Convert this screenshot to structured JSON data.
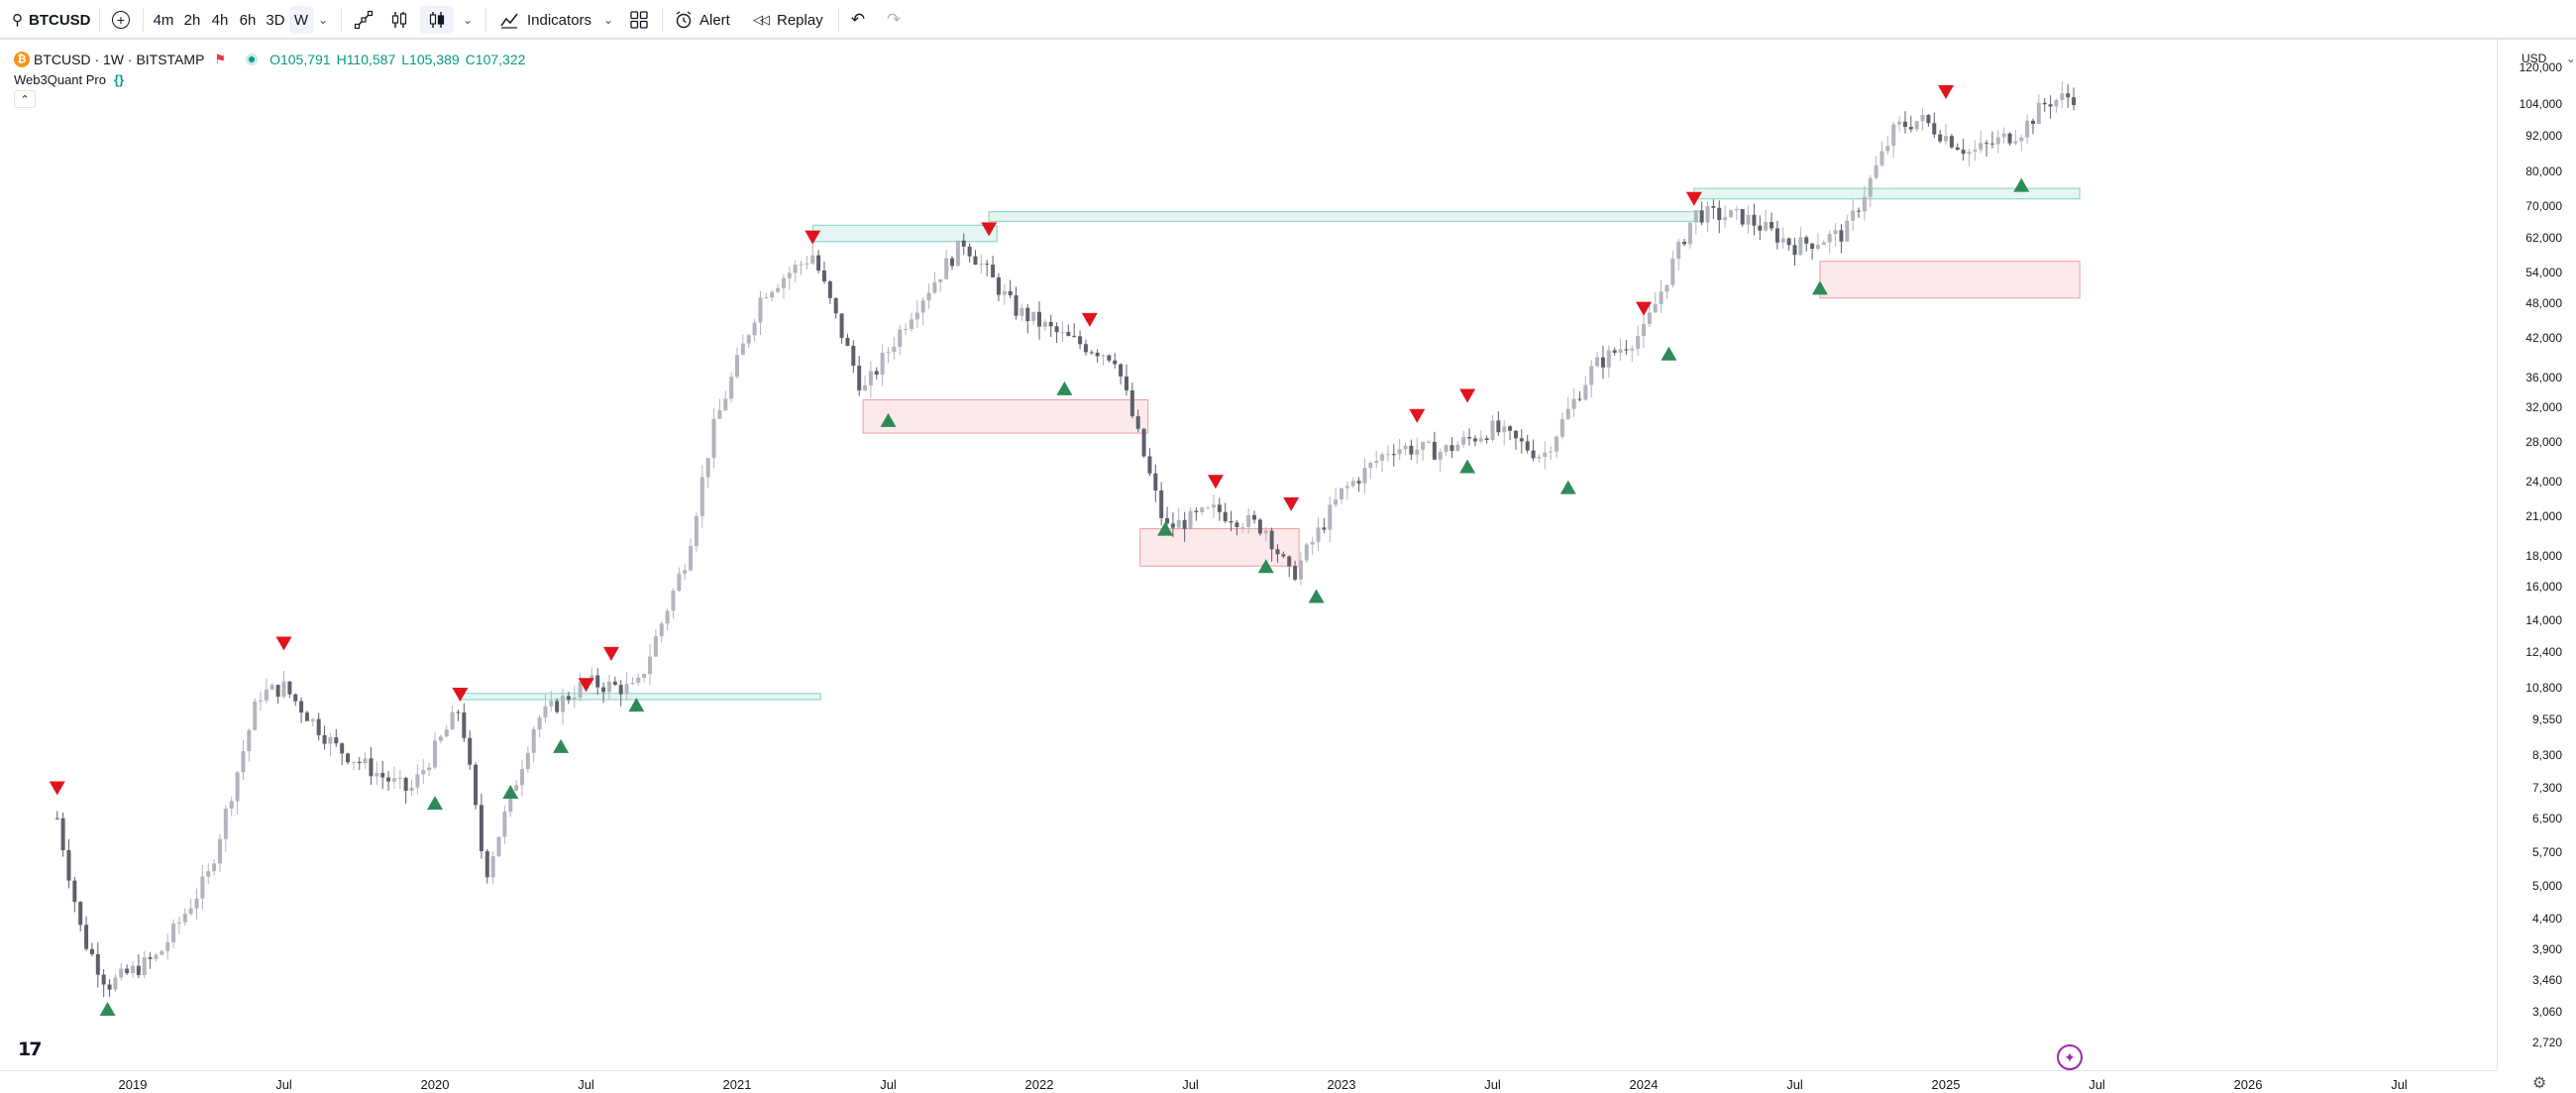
{
  "toolbar": {
    "symbol": "BTCUSD",
    "intervals": [
      "4m",
      "2h",
      "4h",
      "6h",
      "3D",
      "W"
    ],
    "active_interval": "W",
    "indicators_label": "Indicators",
    "alert_label": "Alert",
    "replay_label": "Replay"
  },
  "legend": {
    "title": "BTCUSD · 1W · BITSTAMP",
    "open": "O105,791",
    "high": "H110,587",
    "low": "L105,389",
    "close": "C107,322",
    "indicator_name": "Web3Quant Pro",
    "indicator_icon": "{}"
  },
  "price_axis": {
    "currency": "USD",
    "labels": [
      "120,000",
      "104,000",
      "92,000",
      "80,000",
      "70,000",
      "62,000",
      "54,000",
      "48,000",
      "42,000",
      "36,000",
      "32,000",
      "28,000",
      "24,000",
      "21,000",
      "18,000",
      "16,000",
      "14,000",
      "12,400",
      "10,800",
      "9,550",
      "8,300",
      "7,300",
      "6,500",
      "5,700",
      "5,000",
      "4,400",
      "3,900",
      "3,460",
      "3,060",
      "2,720"
    ]
  },
  "time_axis": {
    "labels": [
      "2019",
      "Jul",
      "2020",
      "Jul",
      "2021",
      "Jul",
      "2022",
      "Jul",
      "2023",
      "Jul",
      "2024",
      "Jul",
      "2025",
      "Jul",
      "2026",
      "Jul"
    ]
  },
  "colors": {
    "up": "#b2b5be",
    "down": "#5d606b",
    "sell_marker": "#e0141e",
    "buy_marker": "#2e8b57",
    "supply_zone": "#e6f5f3",
    "demand_zone": "#fde9ea"
  },
  "chart_data": {
    "type": "candlestick",
    "interval": "1W",
    "y_scale": "log",
    "ylim": [
      2720,
      120000
    ],
    "x_range": [
      "2018-10",
      "2026-07"
    ],
    "series": [
      {
        "date": "2018-10",
        "close": 6500
      },
      {
        "date": "2018-11",
        "close": 4100
      },
      {
        "date": "2018-12",
        "close": 3400
      },
      {
        "date": "2019-02",
        "close": 3800
      },
      {
        "date": "2019-04",
        "close": 5200
      },
      {
        "date": "2019-06",
        "close": 10500
      },
      {
        "date": "2019-07",
        "close": 10800
      },
      {
        "date": "2019-09",
        "close": 8600
      },
      {
        "date": "2019-11",
        "close": 7600
      },
      {
        "date": "2019-12",
        "close": 7200
      },
      {
        "date": "2020-02",
        "close": 10000
      },
      {
        "date": "2020-03",
        "close": 5200
      },
      {
        "date": "2020-05",
        "close": 9500
      },
      {
        "date": "2020-07",
        "close": 11000
      },
      {
        "date": "2020-09",
        "close": 10700
      },
      {
        "date": "2020-11",
        "close": 18000
      },
      {
        "date": "2020-12",
        "close": 29000
      },
      {
        "date": "2021-02",
        "close": 50000
      },
      {
        "date": "2021-04",
        "close": 58000
      },
      {
        "date": "2021-06",
        "close": 34000
      },
      {
        "date": "2021-08",
        "close": 47000
      },
      {
        "date": "2021-10",
        "close": 61000
      },
      {
        "date": "2021-12",
        "close": 47000
      },
      {
        "date": "2022-02",
        "close": 42000
      },
      {
        "date": "2022-04",
        "close": 39000
      },
      {
        "date": "2022-06",
        "close": 20000
      },
      {
        "date": "2022-08",
        "close": 21500
      },
      {
        "date": "2022-10",
        "close": 20000
      },
      {
        "date": "2022-11",
        "close": 16500
      },
      {
        "date": "2023-01",
        "close": 23000
      },
      {
        "date": "2023-03",
        "close": 27500
      },
      {
        "date": "2023-05",
        "close": 27000
      },
      {
        "date": "2023-07",
        "close": 29500
      },
      {
        "date": "2023-09",
        "close": 26500
      },
      {
        "date": "2023-11",
        "close": 37500
      },
      {
        "date": "2024-01",
        "close": 43000
      },
      {
        "date": "2024-03",
        "close": 68000
      },
      {
        "date": "2024-05",
        "close": 67000
      },
      {
        "date": "2024-07",
        "close": 60000
      },
      {
        "date": "2024-09",
        "close": 63000
      },
      {
        "date": "2024-11",
        "close": 95000
      },
      {
        "date": "2024-12",
        "close": 98000
      },
      {
        "date": "2025-02",
        "close": 86000
      },
      {
        "date": "2025-04",
        "close": 94000
      },
      {
        "date": "2025-05",
        "close": 105000
      },
      {
        "date": "2025-06",
        "close": 107322
      }
    ],
    "sell_signals": [
      {
        "date": "2018-10",
        "price": 7300
      },
      {
        "date": "2019-07",
        "price": 12800
      },
      {
        "date": "2020-02",
        "price": 10500
      },
      {
        "date": "2020-07",
        "price": 10900
      },
      {
        "date": "2020-08",
        "price": 12300
      },
      {
        "date": "2021-04",
        "price": 62000
      },
      {
        "date": "2021-11",
        "price": 64000
      },
      {
        "date": "2022-03",
        "price": 45000
      },
      {
        "date": "2022-08",
        "price": 24000
      },
      {
        "date": "2022-11",
        "price": 22000
      },
      {
        "date": "2023-04",
        "price": 31000
      },
      {
        "date": "2023-06",
        "price": 33500
      },
      {
        "date": "2024-01",
        "price": 47000
      },
      {
        "date": "2024-03",
        "price": 72000
      },
      {
        "date": "2025-01",
        "price": 109000
      }
    ],
    "buy_signals": [
      {
        "date": "2018-12",
        "price": 3100
      },
      {
        "date": "2020-01",
        "price": 6900
      },
      {
        "date": "2020-04",
        "price": 7200
      },
      {
        "date": "2020-06",
        "price": 8600
      },
      {
        "date": "2020-09",
        "price": 10100
      },
      {
        "date": "2021-07",
        "price": 30500
      },
      {
        "date": "2022-02",
        "price": 34500
      },
      {
        "date": "2022-06",
        "price": 20000
      },
      {
        "date": "2022-10",
        "price": 17300
      },
      {
        "date": "2022-12",
        "price": 15400
      },
      {
        "date": "2023-06",
        "price": 25500
      },
      {
        "date": "2023-10",
        "price": 23500
      },
      {
        "date": "2024-02",
        "price": 39500
      },
      {
        "date": "2024-08",
        "price": 51000
      },
      {
        "date": "2025-04",
        "price": 76000
      }
    ],
    "zones": [
      {
        "kind": "supply",
        "from": "2020-02",
        "to": "2021-04",
        "low": 10300,
        "high": 10550
      },
      {
        "kind": "supply",
        "from": "2021-04",
        "to": "2021-11",
        "low": 61000,
        "high": 65000
      },
      {
        "kind": "supply",
        "from": "2021-11",
        "to": "2024-03",
        "low": 66000,
        "high": 68500
      },
      {
        "kind": "supply",
        "from": "2024-03",
        "to": "2025-06",
        "low": 72000,
        "high": 75000
      },
      {
        "kind": "demand",
        "from": "2021-06",
        "to": "2022-05",
        "low": 29000,
        "high": 33000
      },
      {
        "kind": "demand",
        "from": "2022-05",
        "to": "2022-11",
        "low": 17300,
        "high": 20000
      },
      {
        "kind": "demand",
        "from": "2024-08",
        "to": "2025-06",
        "low": 49000,
        "high": 56500
      }
    ]
  }
}
